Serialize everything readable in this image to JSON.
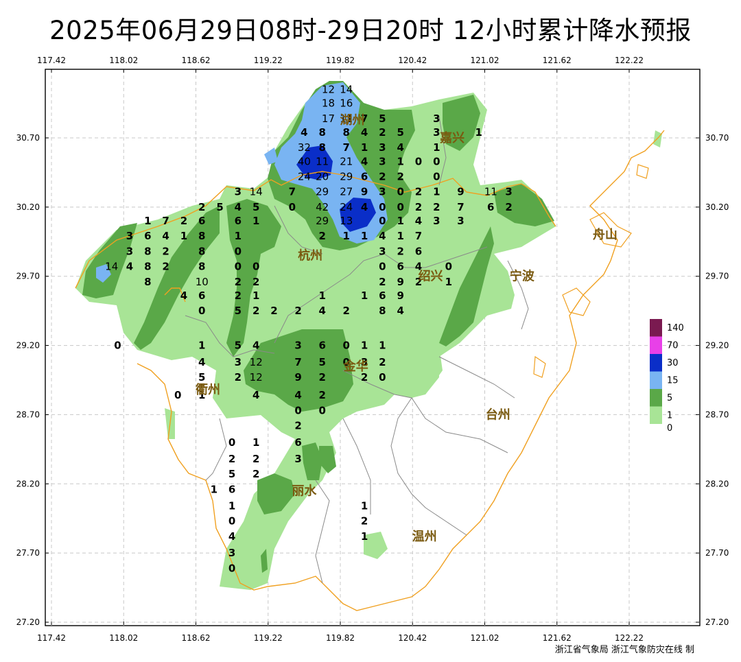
{
  "title": "2025年06月29日08时-29日20时  12小时累计降水预报",
  "credit": "浙江省气象局  浙江气象防灾在线 制",
  "x_ticks": [
    "117.42",
    "118.02",
    "118.62",
    "119.22",
    "119.82",
    "120.42",
    "121.02",
    "121.62",
    "122.22"
  ],
  "y_ticks": [
    "30.70",
    "30.20",
    "29.70",
    "29.20",
    "28.70",
    "28.20",
    "27.70",
    "27.20"
  ],
  "cities": [
    {
      "name": "嘉兴",
      "lon": 120.75,
      "lat": 30.7
    },
    {
      "name": "湖州",
      "lon": 119.92,
      "lat": 30.83
    },
    {
      "name": "杭州",
      "lon": 119.57,
      "lat": 29.85
    },
    {
      "name": "绍兴",
      "lon": 120.57,
      "lat": 29.7
    },
    {
      "name": "宁波",
      "lon": 121.33,
      "lat": 29.7
    },
    {
      "name": "舟山",
      "lon": 122.02,
      "lat": 30.0
    },
    {
      "name": "金华",
      "lon": 119.95,
      "lat": 29.05
    },
    {
      "name": "衢州",
      "lon": 118.72,
      "lat": 28.88
    },
    {
      "name": "台州",
      "lon": 121.13,
      "lat": 28.7
    },
    {
      "name": "丽水",
      "lon": 119.52,
      "lat": 28.15
    },
    {
      "name": "温州",
      "lon": 120.52,
      "lat": 27.82
    }
  ],
  "legend": {
    "levels": [
      "140",
      "70",
      "30",
      "15",
      "5",
      "1",
      "0"
    ],
    "colors": [
      "#7a1a50",
      "#e840e8",
      "#0a2ec8",
      "#79b4f2",
      "#5aa848",
      "#a8e496",
      "#ffffff"
    ]
  },
  "station_values": [
    {
      "v": "12",
      "lon": 119.72,
      "lat": 31.05
    },
    {
      "v": "14",
      "lon": 119.87,
      "lat": 31.05
    },
    {
      "v": "18",
      "lon": 119.72,
      "lat": 30.95
    },
    {
      "v": "16",
      "lon": 119.87,
      "lat": 30.95
    },
    {
      "v": "17",
      "lon": 119.72,
      "lat": 30.84
    },
    {
      "v": "11",
      "lon": 119.87,
      "lat": 30.84
    },
    {
      "v": "7",
      "lon": 120.02,
      "lat": 30.84
    },
    {
      "v": "5",
      "lon": 120.17,
      "lat": 30.84
    },
    {
      "v": "3",
      "lon": 120.62,
      "lat": 30.84
    },
    {
      "v": "4",
      "lon": 119.52,
      "lat": 30.74
    },
    {
      "v": "8",
      "lon": 119.67,
      "lat": 30.74
    },
    {
      "v": "8",
      "lon": 119.87,
      "lat": 30.74
    },
    {
      "v": "4",
      "lon": 120.02,
      "lat": 30.74
    },
    {
      "v": "2",
      "lon": 120.17,
      "lat": 30.74
    },
    {
      "v": "5",
      "lon": 120.32,
      "lat": 30.74
    },
    {
      "v": "3",
      "lon": 120.62,
      "lat": 30.74
    },
    {
      "v": "1",
      "lon": 120.97,
      "lat": 30.74
    },
    {
      "v": "32",
      "lon": 119.52,
      "lat": 30.63
    },
    {
      "v": "8",
      "lon": 119.67,
      "lat": 30.63
    },
    {
      "v": "7",
      "lon": 119.87,
      "lat": 30.63
    },
    {
      "v": "1",
      "lon": 120.02,
      "lat": 30.63
    },
    {
      "v": "3",
      "lon": 120.17,
      "lat": 30.63
    },
    {
      "v": "4",
      "lon": 120.32,
      "lat": 30.63
    },
    {
      "v": "1",
      "lon": 120.62,
      "lat": 30.63
    },
    {
      "v": "40",
      "lon": 119.52,
      "lat": 30.53
    },
    {
      "v": "11",
      "lon": 119.67,
      "lat": 30.53
    },
    {
      "v": "21",
      "lon": 119.87,
      "lat": 30.53
    },
    {
      "v": "4",
      "lon": 120.02,
      "lat": 30.53
    },
    {
      "v": "3",
      "lon": 120.17,
      "lat": 30.53
    },
    {
      "v": "1",
      "lon": 120.32,
      "lat": 30.53
    },
    {
      "v": "0",
      "lon": 120.47,
      "lat": 30.53
    },
    {
      "v": "0",
      "lon": 120.62,
      "lat": 30.53
    },
    {
      "v": "24",
      "lon": 119.52,
      "lat": 30.42
    },
    {
      "v": "20",
      "lon": 119.67,
      "lat": 30.42
    },
    {
      "v": "29",
      "lon": 119.87,
      "lat": 30.42
    },
    {
      "v": "6",
      "lon": 120.02,
      "lat": 30.42
    },
    {
      "v": "2",
      "lon": 120.17,
      "lat": 30.42
    },
    {
      "v": "2",
      "lon": 120.32,
      "lat": 30.42
    },
    {
      "v": "0",
      "lon": 120.62,
      "lat": 30.42
    },
    {
      "v": "3",
      "lon": 118.97,
      "lat": 30.31
    },
    {
      "v": "14",
      "lon": 119.12,
      "lat": 30.31
    },
    {
      "v": "7",
      "lon": 119.42,
      "lat": 30.31
    },
    {
      "v": "29",
      "lon": 119.67,
      "lat": 30.31
    },
    {
      "v": "27",
      "lon": 119.87,
      "lat": 30.31
    },
    {
      "v": "9",
      "lon": 120.02,
      "lat": 30.31
    },
    {
      "v": "3",
      "lon": 120.17,
      "lat": 30.31
    },
    {
      "v": "0",
      "lon": 120.32,
      "lat": 30.31
    },
    {
      "v": "2",
      "lon": 120.47,
      "lat": 30.31
    },
    {
      "v": "1",
      "lon": 120.62,
      "lat": 30.31
    },
    {
      "v": "9",
      "lon": 120.82,
      "lat": 30.31
    },
    {
      "v": "11",
      "lon": 121.07,
      "lat": 30.31
    },
    {
      "v": "3",
      "lon": 121.22,
      "lat": 30.31
    },
    {
      "v": "2",
      "lon": 118.67,
      "lat": 30.2
    },
    {
      "v": "5",
      "lon": 118.82,
      "lat": 30.2
    },
    {
      "v": "4",
      "lon": 118.97,
      "lat": 30.2
    },
    {
      "v": "5",
      "lon": 119.12,
      "lat": 30.2
    },
    {
      "v": "0",
      "lon": 119.42,
      "lat": 30.2
    },
    {
      "v": "42",
      "lon": 119.67,
      "lat": 30.2
    },
    {
      "v": "24",
      "lon": 119.87,
      "lat": 30.2
    },
    {
      "v": "4",
      "lon": 120.02,
      "lat": 30.2
    },
    {
      "v": "0",
      "lon": 120.17,
      "lat": 30.2
    },
    {
      "v": "0",
      "lon": 120.32,
      "lat": 30.2
    },
    {
      "v": "2",
      "lon": 120.47,
      "lat": 30.2
    },
    {
      "v": "2",
      "lon": 120.62,
      "lat": 30.2
    },
    {
      "v": "7",
      "lon": 120.82,
      "lat": 30.2
    },
    {
      "v": "6",
      "lon": 121.07,
      "lat": 30.2
    },
    {
      "v": "2",
      "lon": 121.22,
      "lat": 30.2
    },
    {
      "v": "1",
      "lon": 118.22,
      "lat": 30.1
    },
    {
      "v": "7",
      "lon": 118.37,
      "lat": 30.1
    },
    {
      "v": "2",
      "lon": 118.52,
      "lat": 30.1
    },
    {
      "v": "6",
      "lon": 118.67,
      "lat": 30.1
    },
    {
      "v": "6",
      "lon": 118.97,
      "lat": 30.1
    },
    {
      "v": "1",
      "lon": 119.12,
      "lat": 30.1
    },
    {
      "v": "29",
      "lon": 119.67,
      "lat": 30.1
    },
    {
      "v": "13",
      "lon": 119.87,
      "lat": 30.1
    },
    {
      "v": "0",
      "lon": 120.17,
      "lat": 30.1
    },
    {
      "v": "1",
      "lon": 120.32,
      "lat": 30.1
    },
    {
      "v": "4",
      "lon": 120.47,
      "lat": 30.1
    },
    {
      "v": "3",
      "lon": 120.62,
      "lat": 30.1
    },
    {
      "v": "3",
      "lon": 120.82,
      "lat": 30.1
    },
    {
      "v": "3",
      "lon": 118.07,
      "lat": 29.99
    },
    {
      "v": "6",
      "lon": 118.22,
      "lat": 29.99
    },
    {
      "v": "4",
      "lon": 118.37,
      "lat": 29.99
    },
    {
      "v": "1",
      "lon": 118.52,
      "lat": 29.99
    },
    {
      "v": "8",
      "lon": 118.67,
      "lat": 29.99
    },
    {
      "v": "1",
      "lon": 118.97,
      "lat": 29.99
    },
    {
      "v": "2",
      "lon": 119.67,
      "lat": 29.99
    },
    {
      "v": "1",
      "lon": 119.87,
      "lat": 29.99
    },
    {
      "v": "1",
      "lon": 120.02,
      "lat": 29.99
    },
    {
      "v": "4",
      "lon": 120.17,
      "lat": 29.99
    },
    {
      "v": "1",
      "lon": 120.32,
      "lat": 29.99
    },
    {
      "v": "7",
      "lon": 120.47,
      "lat": 29.99
    },
    {
      "v": "3",
      "lon": 118.07,
      "lat": 29.88
    },
    {
      "v": "8",
      "lon": 118.22,
      "lat": 29.88
    },
    {
      "v": "2",
      "lon": 118.37,
      "lat": 29.88
    },
    {
      "v": "8",
      "lon": 118.67,
      "lat": 29.88
    },
    {
      "v": "0",
      "lon": 118.97,
      "lat": 29.88
    },
    {
      "v": "3",
      "lon": 120.17,
      "lat": 29.88
    },
    {
      "v": "2",
      "lon": 120.32,
      "lat": 29.88
    },
    {
      "v": "6",
      "lon": 120.47,
      "lat": 29.88
    },
    {
      "v": "14",
      "lon": 117.92,
      "lat": 29.77
    },
    {
      "v": "4",
      "lon": 118.07,
      "lat": 29.77
    },
    {
      "v": "8",
      "lon": 118.22,
      "lat": 29.77
    },
    {
      "v": "2",
      "lon": 118.37,
      "lat": 29.77
    },
    {
      "v": "8",
      "lon": 118.67,
      "lat": 29.77
    },
    {
      "v": "0",
      "lon": 118.97,
      "lat": 29.77
    },
    {
      "v": "0",
      "lon": 119.12,
      "lat": 29.77
    },
    {
      "v": "0",
      "lon": 120.17,
      "lat": 29.77
    },
    {
      "v": "6",
      "lon": 120.32,
      "lat": 29.77
    },
    {
      "v": "4",
      "lon": 120.47,
      "lat": 29.77
    },
    {
      "v": "0",
      "lon": 120.72,
      "lat": 29.77
    },
    {
      "v": "8",
      "lon": 118.22,
      "lat": 29.66
    },
    {
      "v": "10",
      "lon": 118.67,
      "lat": 29.66
    },
    {
      "v": "2",
      "lon": 118.97,
      "lat": 29.66
    },
    {
      "v": "2",
      "lon": 119.12,
      "lat": 29.66
    },
    {
      "v": "2",
      "lon": 120.17,
      "lat": 29.66
    },
    {
      "v": "9",
      "lon": 120.32,
      "lat": 29.66
    },
    {
      "v": "2",
      "lon": 120.47,
      "lat": 29.66
    },
    {
      "v": "1",
      "lon": 120.72,
      "lat": 29.66
    },
    {
      "v": "4",
      "lon": 118.52,
      "lat": 29.56
    },
    {
      "v": "6",
      "lon": 118.67,
      "lat": 29.56
    },
    {
      "v": "2",
      "lon": 118.97,
      "lat": 29.56
    },
    {
      "v": "1",
      "lon": 119.12,
      "lat": 29.56
    },
    {
      "v": "1",
      "lon": 119.67,
      "lat": 29.56
    },
    {
      "v": "1",
      "lon": 120.02,
      "lat": 29.56
    },
    {
      "v": "6",
      "lon": 120.17,
      "lat": 29.56
    },
    {
      "v": "9",
      "lon": 120.32,
      "lat": 29.56
    },
    {
      "v": "0",
      "lon": 118.67,
      "lat": 29.45
    },
    {
      "v": "5",
      "lon": 118.97,
      "lat": 29.45
    },
    {
      "v": "2",
      "lon": 119.12,
      "lat": 29.45
    },
    {
      "v": "2",
      "lon": 119.27,
      "lat": 29.45
    },
    {
      "v": "2",
      "lon": 119.47,
      "lat": 29.45
    },
    {
      "v": "4",
      "lon": 119.67,
      "lat": 29.45
    },
    {
      "v": "2",
      "lon": 119.87,
      "lat": 29.45
    },
    {
      "v": "8",
      "lon": 120.17,
      "lat": 29.45
    },
    {
      "v": "4",
      "lon": 120.32,
      "lat": 29.45
    },
    {
      "v": "0",
      "lon": 117.97,
      "lat": 29.2
    },
    {
      "v": "1",
      "lon": 118.67,
      "lat": 29.2
    },
    {
      "v": "5",
      "lon": 118.97,
      "lat": 29.2
    },
    {
      "v": "4",
      "lon": 119.12,
      "lat": 29.2
    },
    {
      "v": "3",
      "lon": 119.47,
      "lat": 29.2
    },
    {
      "v": "6",
      "lon": 119.67,
      "lat": 29.2
    },
    {
      "v": "0",
      "lon": 119.87,
      "lat": 29.2
    },
    {
      "v": "1",
      "lon": 120.02,
      "lat": 29.2
    },
    {
      "v": "1",
      "lon": 120.17,
      "lat": 29.2
    },
    {
      "v": "4",
      "lon": 118.67,
      "lat": 29.08
    },
    {
      "v": "3",
      "lon": 118.97,
      "lat": 29.08
    },
    {
      "v": "12",
      "lon": 119.12,
      "lat": 29.08
    },
    {
      "v": "7",
      "lon": 119.47,
      "lat": 29.08
    },
    {
      "v": "5",
      "lon": 119.67,
      "lat": 29.08
    },
    {
      "v": "0",
      "lon": 119.87,
      "lat": 29.08
    },
    {
      "v": "3",
      "lon": 120.02,
      "lat": 29.08
    },
    {
      "v": "2",
      "lon": 120.17,
      "lat": 29.08
    },
    {
      "v": "5",
      "lon": 118.67,
      "lat": 28.97
    },
    {
      "v": "2",
      "lon": 118.97,
      "lat": 28.97
    },
    {
      "v": "12",
      "lon": 119.12,
      "lat": 28.97
    },
    {
      "v": "9",
      "lon": 119.47,
      "lat": 28.97
    },
    {
      "v": "2",
      "lon": 119.67,
      "lat": 28.97
    },
    {
      "v": "2",
      "lon": 120.02,
      "lat": 28.97
    },
    {
      "v": "0",
      "lon": 120.17,
      "lat": 28.97
    },
    {
      "v": "0",
      "lon": 118.47,
      "lat": 28.84
    },
    {
      "v": "1",
      "lon": 118.67,
      "lat": 28.84
    },
    {
      "v": "4",
      "lon": 119.12,
      "lat": 28.84
    },
    {
      "v": "4",
      "lon": 119.47,
      "lat": 28.84
    },
    {
      "v": "2",
      "lon": 119.67,
      "lat": 28.84
    },
    {
      "v": "0",
      "lon": 119.47,
      "lat": 28.73
    },
    {
      "v": "0",
      "lon": 119.67,
      "lat": 28.73
    },
    {
      "v": "2",
      "lon": 119.47,
      "lat": 28.62
    },
    {
      "v": "0",
      "lon": 118.92,
      "lat": 28.5
    },
    {
      "v": "1",
      "lon": 119.12,
      "lat": 28.5
    },
    {
      "v": "6",
      "lon": 119.47,
      "lat": 28.5
    },
    {
      "v": "2",
      "lon": 118.92,
      "lat": 28.38
    },
    {
      "v": "2",
      "lon": 119.12,
      "lat": 28.38
    },
    {
      "v": "3",
      "lon": 119.47,
      "lat": 28.38
    },
    {
      "v": "5",
      "lon": 118.92,
      "lat": 28.27
    },
    {
      "v": "2",
      "lon": 119.12,
      "lat": 28.27
    },
    {
      "v": "6",
      "lon": 118.92,
      "lat": 28.16
    },
    {
      "v": "1",
      "lon": 118.77,
      "lat": 28.16
    },
    {
      "v": "1",
      "lon": 118.92,
      "lat": 28.04
    },
    {
      "v": "1",
      "lon": 120.02,
      "lat": 28.04
    },
    {
      "v": "0",
      "lon": 118.92,
      "lat": 27.93
    },
    {
      "v": "2",
      "lon": 120.02,
      "lat": 27.93
    },
    {
      "v": "4",
      "lon": 118.92,
      "lat": 27.82
    },
    {
      "v": "1",
      "lon": 120.02,
      "lat": 27.82
    },
    {
      "v": "3",
      "lon": 118.92,
      "lat": 27.7
    },
    {
      "v": "0",
      "lon": 118.92,
      "lat": 27.59
    }
  ]
}
